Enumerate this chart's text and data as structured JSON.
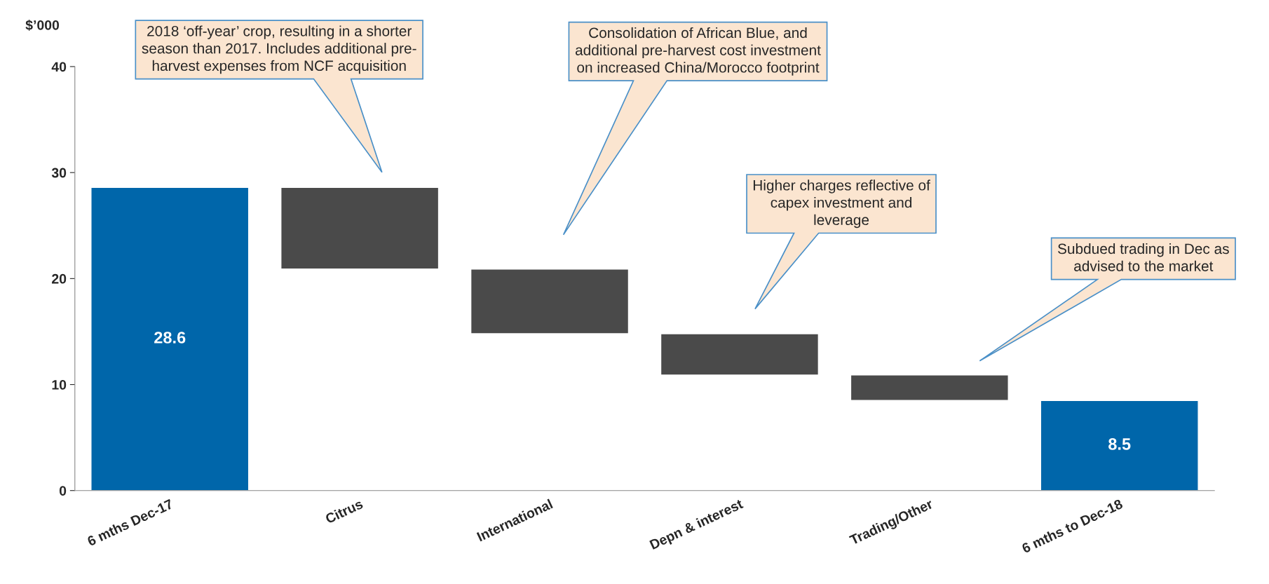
{
  "chart_data": {
    "type": "bar",
    "ylabel": "$’000",
    "categories": [
      "6 mths Dec-17",
      "Citrus",
      "International",
      "Depn & interest",
      "Trading/Other",
      "6 mths to Dec-18"
    ],
    "values": [
      28.6,
      -7.7,
      -6.1,
      -3.9,
      -2.4,
      8.5
    ],
    "base": [
      0,
      28.6,
      20.9,
      14.8,
      10.9,
      0
    ],
    "colors": [
      "#0066aa",
      "#4a4a4a",
      "#4a4a4a",
      "#4a4a4a",
      "#4a4a4a",
      "#0066aa"
    ],
    "value_labels": [
      "28.6",
      null,
      null,
      null,
      null,
      "8.5"
    ],
    "ylim": [
      0,
      40
    ],
    "yticks": [
      0,
      10,
      20,
      30,
      40
    ],
    "grid": false,
    "legend": false,
    "annotations": [
      "2018 ‘off-year’ crop, resulting in a shorter\nseason than 2017. Includes additional pre-\nharvest expenses from NCF acquisition",
      "Consolidation of African Blue, and\nadditional pre-harvest cost investment\non increased China/Morocco footprint",
      "Higher charges reflective of\ncapex investment and\nleverage",
      "Subdued trading in Dec as\nadvised to the market"
    ]
  }
}
